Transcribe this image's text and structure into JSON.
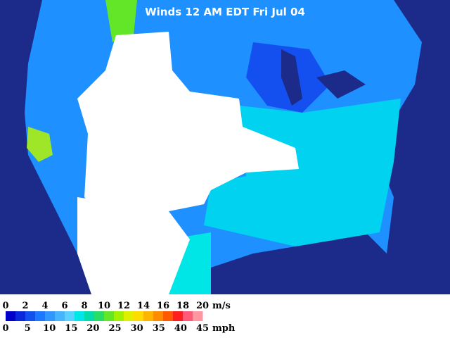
{
  "map": {
    "title": "Winds 12 AM EDT Fri Jul 04",
    "legend": {
      "ms_ticks": [
        "0",
        "2",
        "4",
        "6",
        "8",
        "10",
        "12",
        "14",
        "16",
        "18",
        "20"
      ],
      "ms_unit": "m/s",
      "mph_ticks": [
        "0",
        "5",
        "10",
        "15",
        "20",
        "25",
        "30",
        "35",
        "40",
        "45"
      ],
      "mph_unit": "mph",
      "colors": [
        "#0000c8",
        "#0a28dc",
        "#1450f0",
        "#1e78ff",
        "#3296ff",
        "#46b4ff",
        "#5ad2ff",
        "#00e6e6",
        "#00dcaa",
        "#28dc64",
        "#64e628",
        "#a0f000",
        "#dcf000",
        "#ffdc00",
        "#ffb400",
        "#ff8c00",
        "#ff5a00",
        "#ff1e1e",
        "#ff5a78",
        "#ff96a0"
      ]
    }
  }
}
